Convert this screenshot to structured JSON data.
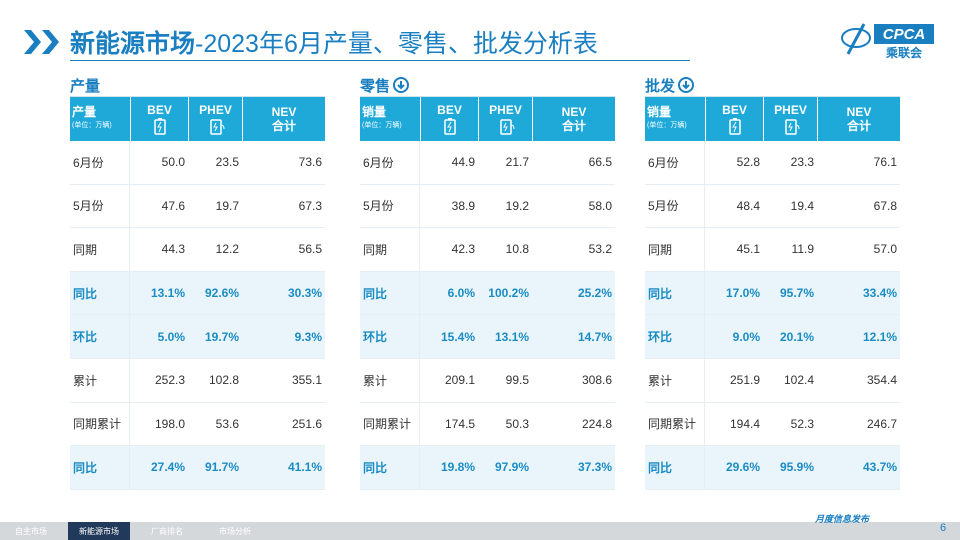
{
  "header": {
    "title_bold": "新能源市场",
    "title_rest": "-2023年6月产量、零售、批发分析表",
    "logo": "CPCA",
    "logo_cn": "乘联会"
  },
  "tables": [
    {
      "section": "产量",
      "corner": "产量",
      "unit": "(单位：万辆)",
      "columns": [
        [
          "BEV"
        ],
        [
          "PHEV"
        ],
        [
          "NEV",
          "合计"
        ]
      ],
      "rows": [
        [
          "6月份",
          "50.0",
          "23.5",
          "73.6"
        ],
        [
          "5月份",
          "47.6",
          "19.7",
          "67.3"
        ],
        [
          "同期",
          "44.3",
          "12.2",
          "56.5"
        ],
        [
          "同比",
          "13.1%",
          "92.6%",
          "30.3%"
        ],
        [
          "环比",
          "5.0%",
          "19.7%",
          "9.3%"
        ],
        [
          "累计",
          "252.3",
          "102.8",
          "355.1"
        ],
        [
          "同期累计",
          "198.0",
          "53.6",
          "251.6"
        ],
        [
          "同比",
          "27.4%",
          "91.7%",
          "41.1%"
        ]
      ]
    },
    {
      "section": "零售",
      "corner": "销量",
      "unit": "(单位：万辆)",
      "columns": [
        [
          "BEV"
        ],
        [
          "PHEV"
        ],
        [
          "NEV",
          "合计"
        ]
      ],
      "rows": [
        [
          "6月份",
          "44.9",
          "21.7",
          "66.5"
        ],
        [
          "5月份",
          "38.9",
          "19.2",
          "58.0"
        ],
        [
          "同期",
          "42.3",
          "10.8",
          "53.2"
        ],
        [
          "同比",
          "6.0%",
          "100.2%",
          "25.2%"
        ],
        [
          "环比",
          "15.4%",
          "13.1%",
          "14.7%"
        ],
        [
          "累计",
          "209.1",
          "99.5",
          "308.6"
        ],
        [
          "同期累计",
          "174.5",
          "50.3",
          "224.8"
        ],
        [
          "同比",
          "19.8%",
          "97.9%",
          "37.3%"
        ]
      ]
    },
    {
      "section": "批发",
      "corner": "销量",
      "unit": "(单位：万辆)",
      "columns": [
        [
          "BEV"
        ],
        [
          "PHEV"
        ],
        [
          "NEV",
          "合计"
        ]
      ],
      "rows": [
        [
          "6月份",
          "52.8",
          "23.3",
          "76.1"
        ],
        [
          "5月份",
          "48.4",
          "19.4",
          "67.8"
        ],
        [
          "同期",
          "45.1",
          "11.9",
          "57.0"
        ],
        [
          "同比",
          "17.0%",
          "95.7%",
          "33.4%"
        ],
        [
          "环比",
          "9.0%",
          "20.1%",
          "12.1%"
        ],
        [
          "累计",
          "251.9",
          "102.4",
          "354.4"
        ],
        [
          "同期累计",
          "194.4",
          "52.3",
          "246.7"
        ],
        [
          "同比",
          "29.6%",
          "95.9%",
          "43.7%"
        ]
      ]
    }
  ],
  "footer": {
    "tabs": [
      "自主市场",
      "新能源市场",
      "厂商排名",
      "市场分析"
    ],
    "tagline": "月度信息发布",
    "page": "6"
  }
}
